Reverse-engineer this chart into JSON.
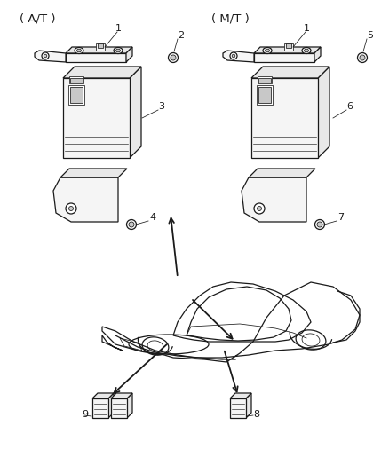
{
  "bg_color": "#ffffff",
  "line_color": "#1a1a1a",
  "fig_width": 4.38,
  "fig_height": 5.33,
  "dpi": 100,
  "at_label": "( A/T )",
  "mt_label": "( M/T )",
  "lw": 0.9,
  "lw_thin": 0.55,
  "gray_fill": "#e8e8e8",
  "light_fill": "#f5f5f5",
  "white_fill": "#ffffff",
  "dark_fill": "#c8c8c8"
}
